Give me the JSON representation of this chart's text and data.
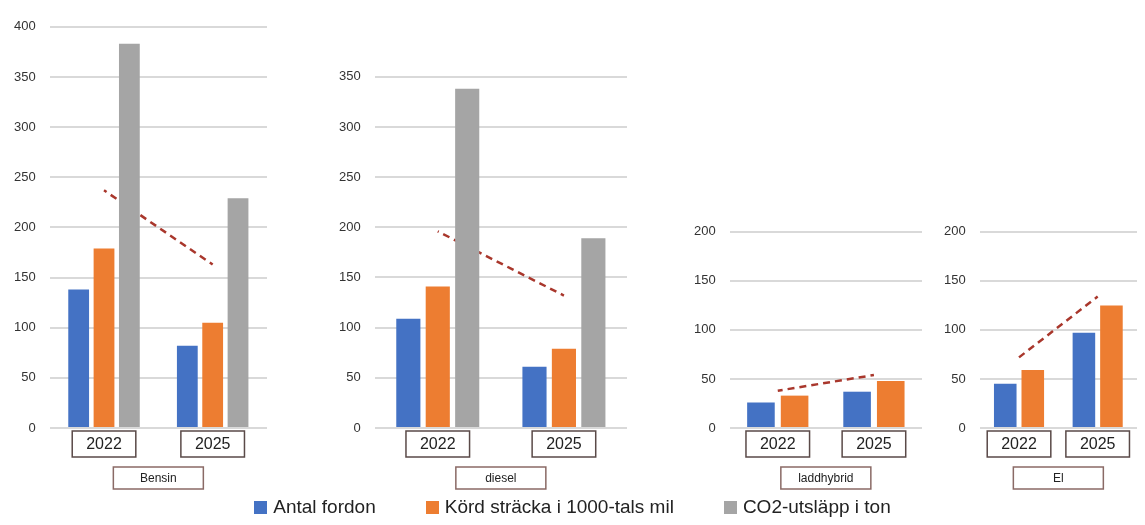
{
  "chart_data": [
    {
      "type": "bar",
      "xlabel": "Bensin",
      "categories": [
        "2022",
        "2025"
      ],
      "ylim": [
        0,
        400
      ],
      "yticks": [
        0,
        50,
        100,
        150,
        200,
        250,
        300,
        350,
        400
      ],
      "grid": "y",
      "legend": "bottom",
      "series": [
        {
          "name": "Antal fordon",
          "color": "#4472c4",
          "values": [
            138,
            82
          ]
        },
        {
          "name": "Körd sträcka i 1000-tals mil",
          "color": "#ed7d31",
          "values": [
            179,
            105
          ]
        },
        {
          "name": "CO2-utsläpp i ton",
          "color": "#a5a5a5",
          "values": [
            383,
            229
          ]
        },
        {
          "type": "line",
          "color": "#a9372c",
          "line_style": "dashed",
          "marker": "none",
          "values": [
            237,
            163
          ]
        }
      ]
    },
    {
      "type": "bar",
      "xlabel": "diesel",
      "categories": [
        "2022",
        "2025"
      ],
      "ylim": [
        0,
        350
      ],
      "yticks": [
        0,
        50,
        100,
        150,
        200,
        250,
        300,
        350
      ],
      "grid": "y",
      "series": [
        {
          "color": "#4472c4",
          "values": [
            109,
            61
          ]
        },
        {
          "color": "#ed7d31",
          "values": [
            141,
            79
          ]
        },
        {
          "color": "#a5a5a5",
          "values": [
            338,
            189
          ]
        },
        {
          "type": "line",
          "color": "#a9372c",
          "line_style": "dashed",
          "marker": "none",
          "values": [
            196,
            132
          ]
        }
      ]
    },
    {
      "type": "bar",
      "xlabel": "laddhybrid",
      "categories": [
        "2022",
        "2025"
      ],
      "ylim": [
        0,
        200
      ],
      "yticks": [
        0,
        50,
        100,
        150,
        200
      ],
      "grid": "y",
      "series": [
        {
          "color": "#4472c4",
          "values": [
            26,
            37
          ]
        },
        {
          "color": "#ed7d31",
          "values": [
            33,
            48
          ]
        },
        {
          "type": "line",
          "color": "#a9372c",
          "line_style": "dashed",
          "marker": "none",
          "values": [
            38,
            54
          ]
        }
      ]
    },
    {
      "type": "bar",
      "xlabel": "El",
      "categories": [
        "2022",
        "2025"
      ],
      "ylim": [
        0,
        200
      ],
      "yticks": [
        0,
        50,
        100,
        150,
        200
      ],
      "grid": "y",
      "series": [
        {
          "color": "#4472c4",
          "values": [
            45,
            97
          ]
        },
        {
          "color": "#ed7d31",
          "values": [
            59,
            125
          ]
        },
        {
          "type": "line",
          "color": "#a9372c",
          "line_style": "dashed",
          "marker": "none",
          "values": [
            72,
            134
          ]
        }
      ]
    }
  ]
}
